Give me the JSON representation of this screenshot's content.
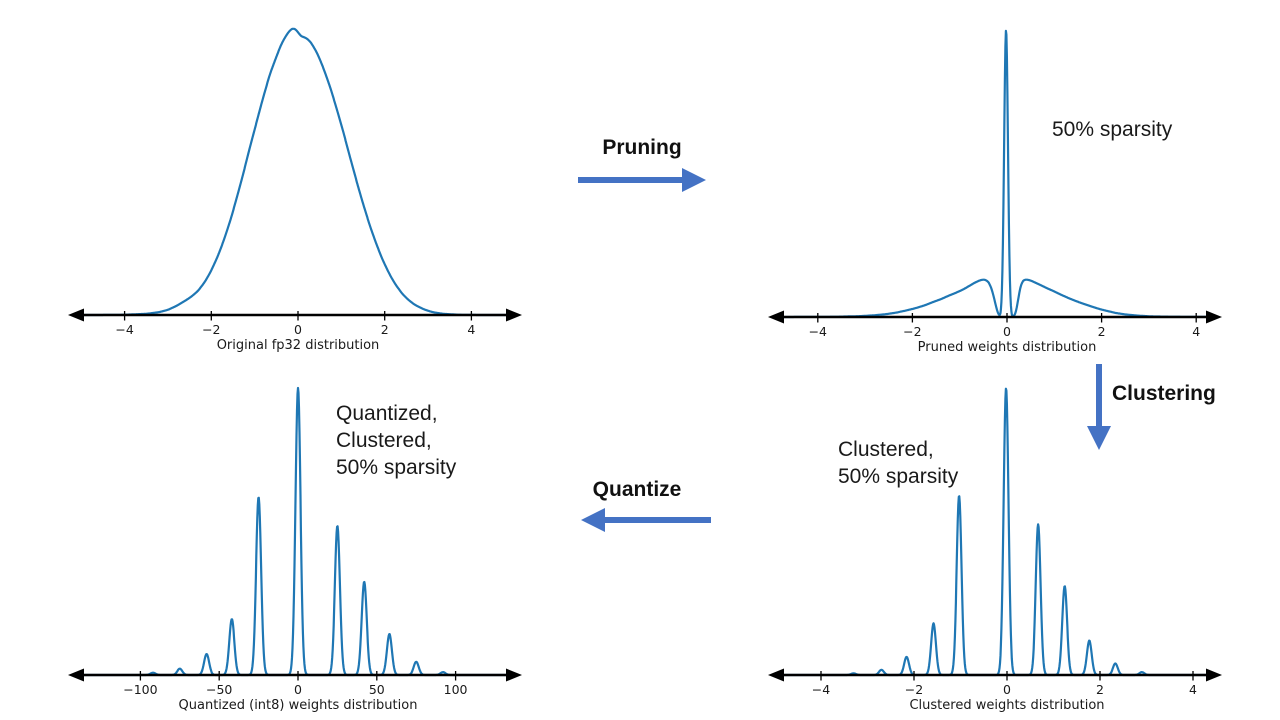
{
  "colors": {
    "curve": "#1f77b4",
    "arrow": "#4472C4",
    "axis": "#000000",
    "text": "#1a1a1a"
  },
  "flow": {
    "pruning_label": "Pruning",
    "clustering_label": "Clustering",
    "quantize_label": "Quantize"
  },
  "annotations": {
    "pruned_note": "50% sparsity",
    "clustered_note_line1": "Clustered,",
    "clustered_note_line2": "50% sparsity",
    "quantized_note_line1": "Quantized,",
    "quantized_note_line2": "Clustered,",
    "quantized_note_line3": "50% sparsity"
  },
  "chart_data": [
    {
      "id": "original",
      "type": "line",
      "title": "Original fp32 distribution",
      "x_range": [
        -5.2,
        5.1
      ],
      "y_range": [
        0,
        1.05
      ],
      "tick_values": [
        -4,
        -2,
        0,
        2,
        4
      ],
      "tick_labels": [
        "−4",
        "−2",
        "0",
        "2",
        "4"
      ],
      "smooth": true,
      "curve_points": [
        [
          -4.6,
          0
        ],
        [
          -4.0,
          0.001
        ],
        [
          -3.5,
          0.004
        ],
        [
          -3.2,
          0.01
        ],
        [
          -3.0,
          0.018
        ],
        [
          -2.8,
          0.032
        ],
        [
          -2.6,
          0.05
        ],
        [
          -2.45,
          0.065
        ],
        [
          -2.3,
          0.085
        ],
        [
          -2.15,
          0.115
        ],
        [
          -2.0,
          0.155
        ],
        [
          -1.85,
          0.205
        ],
        [
          -1.7,
          0.265
        ],
        [
          -1.55,
          0.335
        ],
        [
          -1.4,
          0.415
        ],
        [
          -1.25,
          0.5
        ],
        [
          -1.1,
          0.59
        ],
        [
          -0.95,
          0.675
        ],
        [
          -0.8,
          0.76
        ],
        [
          -0.65,
          0.838
        ],
        [
          -0.5,
          0.9
        ],
        [
          -0.38,
          0.945
        ],
        [
          -0.27,
          0.975
        ],
        [
          -0.18,
          0.993
        ],
        [
          -0.1,
          1.0
        ],
        [
          -0.02,
          0.99
        ],
        [
          0.06,
          0.972
        ],
        [
          0.14,
          0.968
        ],
        [
          0.22,
          0.962
        ],
        [
          0.32,
          0.945
        ],
        [
          0.45,
          0.91
        ],
        [
          0.6,
          0.855
        ],
        [
          0.75,
          0.79
        ],
        [
          0.9,
          0.715
        ],
        [
          1.05,
          0.635
        ],
        [
          1.2,
          0.55
        ],
        [
          1.35,
          0.467
        ],
        [
          1.5,
          0.388
        ],
        [
          1.65,
          0.315
        ],
        [
          1.8,
          0.25
        ],
        [
          1.95,
          0.193
        ],
        [
          2.1,
          0.145
        ],
        [
          2.25,
          0.106
        ],
        [
          2.4,
          0.075
        ],
        [
          2.55,
          0.052
        ],
        [
          2.7,
          0.035
        ],
        [
          2.9,
          0.02
        ],
        [
          3.1,
          0.01
        ],
        [
          3.35,
          0.004
        ],
        [
          3.7,
          0.001
        ],
        [
          4.2,
          0
        ],
        [
          4.7,
          0
        ]
      ]
    },
    {
      "id": "pruned",
      "type": "line",
      "title": "Pruned weights distribution",
      "x_range": [
        -5.1,
        4.7
      ],
      "y_range": [
        0,
        1.05
      ],
      "tick_values": [
        -4,
        -2,
        0,
        2,
        4
      ],
      "tick_labels": [
        "−4",
        "−2",
        "0",
        "2",
        "4"
      ],
      "smooth": true,
      "curve_points": [
        [
          -4.7,
          0
        ],
        [
          -3.6,
          0.001
        ],
        [
          -3.1,
          0.003
        ],
        [
          -2.8,
          0.006
        ],
        [
          -2.55,
          0.01
        ],
        [
          -2.35,
          0.015
        ],
        [
          -2.15,
          0.022
        ],
        [
          -1.95,
          0.03
        ],
        [
          -1.75,
          0.04
        ],
        [
          -1.55,
          0.053
        ],
        [
          -1.4,
          0.062
        ],
        [
          -1.25,
          0.073
        ],
        [
          -1.1,
          0.083
        ],
        [
          -0.95,
          0.094
        ],
        [
          -0.82,
          0.106
        ],
        [
          -0.7,
          0.118
        ],
        [
          -0.6,
          0.126
        ],
        [
          -0.5,
          0.131
        ],
        [
          -0.43,
          0.128
        ],
        [
          -0.36,
          0.115
        ],
        [
          -0.3,
          0.085
        ],
        [
          -0.25,
          0.05
        ],
        [
          -0.21,
          0.02
        ],
        [
          -0.17,
          0.003
        ],
        [
          -0.13,
          0
        ],
        [
          0.13,
          0
        ],
        [
          0.17,
          0.004
        ],
        [
          0.21,
          0.03
        ],
        [
          0.26,
          0.09
        ],
        [
          0.31,
          0.122
        ],
        [
          0.38,
          0.131
        ],
        [
          0.47,
          0.129
        ],
        [
          0.57,
          0.122
        ],
        [
          0.7,
          0.112
        ],
        [
          0.85,
          0.1
        ],
        [
          1.0,
          0.089
        ],
        [
          1.15,
          0.077
        ],
        [
          1.3,
          0.066
        ],
        [
          1.45,
          0.056
        ],
        [
          1.6,
          0.047
        ],
        [
          1.78,
          0.037
        ],
        [
          1.95,
          0.028
        ],
        [
          2.12,
          0.021
        ],
        [
          2.3,
          0.014
        ],
        [
          2.5,
          0.009
        ],
        [
          2.75,
          0.005
        ],
        [
          3.05,
          0.002
        ],
        [
          3.5,
          0.001
        ],
        [
          4.7,
          0
        ]
      ],
      "spikes": [
        {
          "x": -0.02,
          "h": 1.0
        }
      ],
      "spike_sigma": 0.04
    },
    {
      "id": "quantized",
      "type": "line",
      "title": "Quantized (int8) weights distribution",
      "x_range": [
        -143,
        140
      ],
      "y_range": [
        0,
        1.05
      ],
      "tick_values": [
        -100,
        -50,
        0,
        50,
        100
      ],
      "tick_labels": [
        "−100",
        "−50",
        "0",
        "50",
        "100"
      ],
      "spikes": [
        {
          "x": -92,
          "h": 0.008
        },
        {
          "x": -75,
          "h": 0.022
        },
        {
          "x": -58,
          "h": 0.073
        },
        {
          "x": -42,
          "h": 0.195
        },
        {
          "x": -25,
          "h": 0.62
        },
        {
          "x": 0,
          "h": 1.0
        },
        {
          "x": 25,
          "h": 0.52
        },
        {
          "x": 42,
          "h": 0.325
        },
        {
          "x": 58,
          "h": 0.143
        },
        {
          "x": 75,
          "h": 0.046
        },
        {
          "x": 92,
          "h": 0.01
        }
      ],
      "spike_sigma": 1.6
    },
    {
      "id": "clustered",
      "type": "line",
      "title": "Clustered weights distribution",
      "x_range": [
        -5.1,
        4.7
      ],
      "y_range": [
        0,
        1.05
      ],
      "tick_values": [
        -4,
        -2,
        0,
        2,
        4
      ],
      "tick_labels": [
        "−4",
        "−2",
        "0",
        "2",
        "4"
      ],
      "spikes": [
        {
          "x": -3.3,
          "h": 0.006
        },
        {
          "x": -2.7,
          "h": 0.018
        },
        {
          "x": -2.16,
          "h": 0.063
        },
        {
          "x": -1.58,
          "h": 0.18
        },
        {
          "x": -1.03,
          "h": 0.625
        },
        {
          "x": -0.02,
          "h": 1.0
        },
        {
          "x": 0.67,
          "h": 0.525
        },
        {
          "x": 1.24,
          "h": 0.31
        },
        {
          "x": 1.77,
          "h": 0.12
        },
        {
          "x": 2.33,
          "h": 0.04
        },
        {
          "x": 2.9,
          "h": 0.01
        }
      ],
      "spike_sigma": 0.052
    }
  ]
}
